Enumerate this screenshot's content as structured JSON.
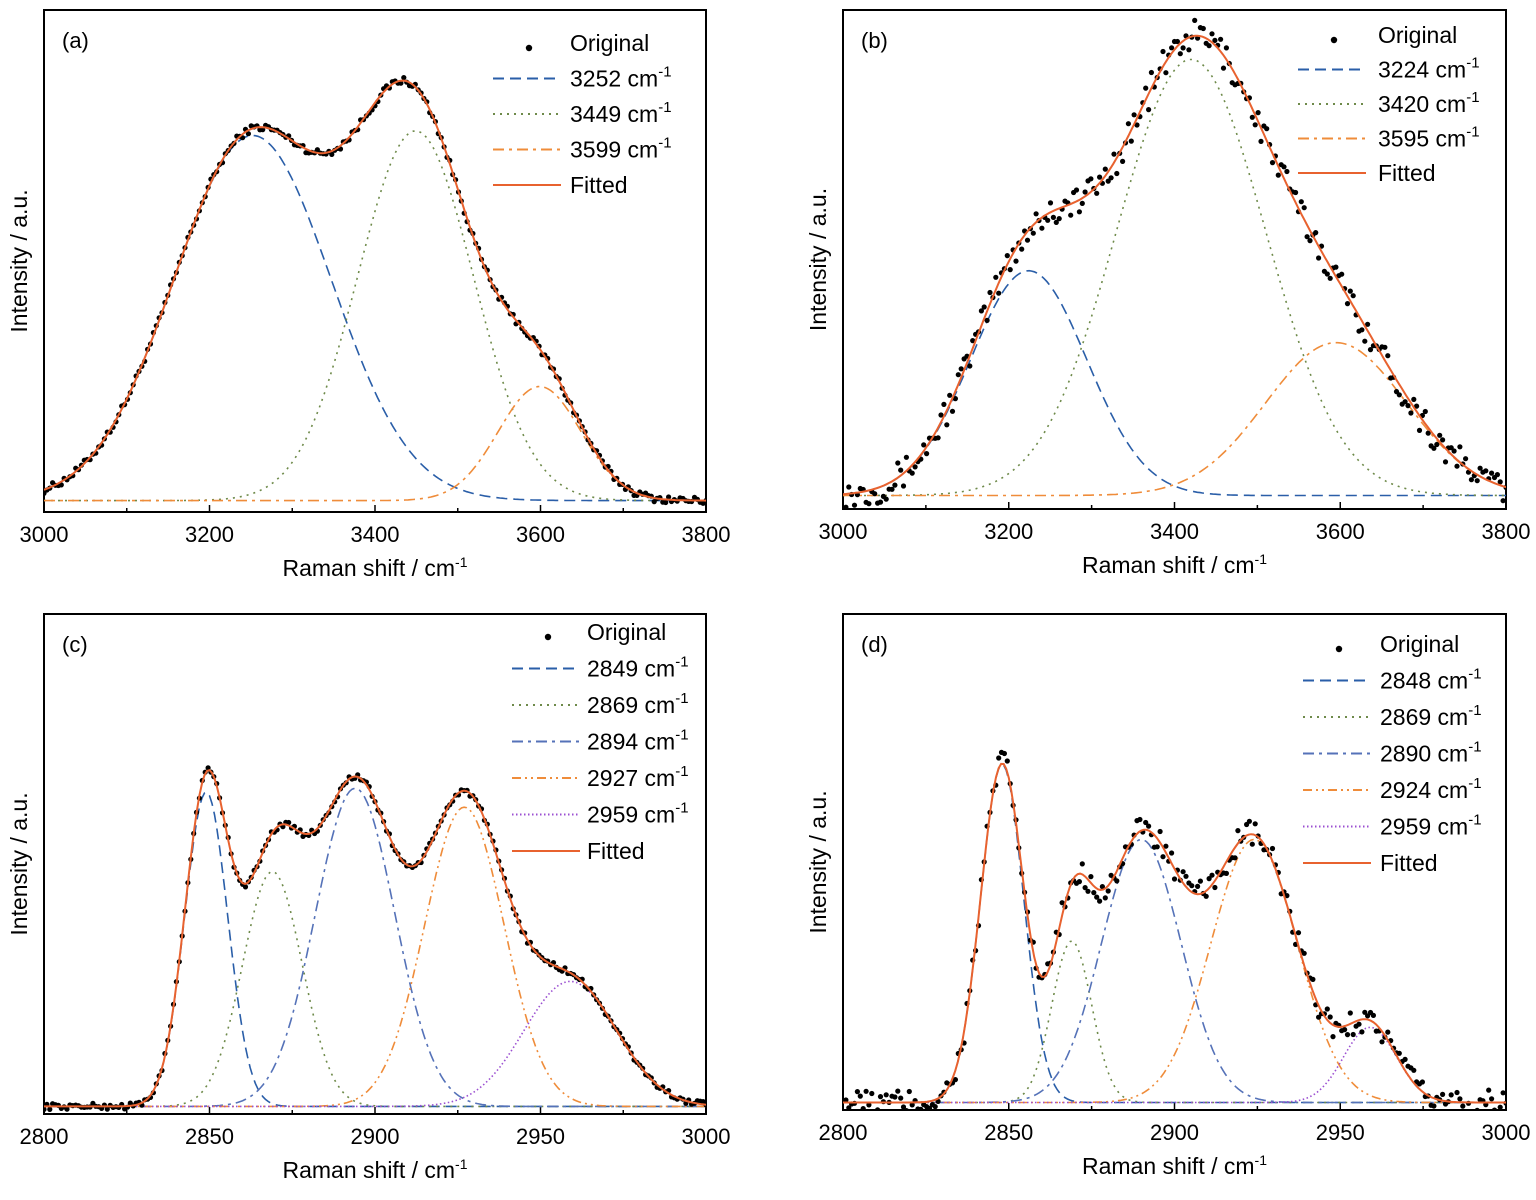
{
  "colors": {
    "original": "#000000",
    "fitted": "#e8622f",
    "blue": "#2a5ea8",
    "green": "#6e8a4a",
    "orange": "#ef8c3a",
    "slate": "#5572b8",
    "purple": "#9b4fd1"
  },
  "chart_data": [
    {
      "type": "line",
      "panel_label": "(a)",
      "xlabel": "Raman shift / cm",
      "xlabel_sup": "-1",
      "ylabel": "Intensity / a.u.",
      "xlim": [
        3000,
        3800
      ],
      "ylim": [
        -0.02,
        1.08
      ],
      "xticks": [
        "3000",
        "3200",
        "3400",
        "3600",
        "3800"
      ],
      "baseline": 0.005,
      "peaks": [
        {
          "center": 3252,
          "amp": 0.8,
          "sigma": 95,
          "style": "dash",
          "color": "blue"
        },
        {
          "center": 3449,
          "amp": 0.81,
          "sigma": 70,
          "style": "dot",
          "color": "green"
        },
        {
          "center": 3599,
          "amp": 0.25,
          "sigma": 50,
          "style": "dashdot",
          "color": "orange"
        }
      ],
      "legend": [
        {
          "label": "Original",
          "sup": "",
          "kind": "marker"
        },
        {
          "label": "3252 cm",
          "sup": "-1",
          "kind": "dash",
          "color": "blue"
        },
        {
          "label": "3449 cm",
          "sup": "-1",
          "kind": "dot",
          "color": "green"
        },
        {
          "label": "3599 cm",
          "sup": "-1",
          "kind": "dashdot",
          "color": "orange"
        },
        {
          "label": "Fitted",
          "sup": "",
          "kind": "line",
          "color": "fitted"
        }
      ]
    },
    {
      "type": "line",
      "panel_label": "(b)",
      "xlabel": "Raman shift / cm",
      "xlabel_sup": "-1",
      "ylabel": "Intensity / a.u.",
      "xlim": [
        3000,
        3800
      ],
      "ylim": [
        -0.03,
        1.08
      ],
      "xticks": [
        "3000",
        "3200",
        "3400",
        "3600",
        "3800"
      ],
      "baseline": 0.0,
      "peaks": [
        {
          "center": 3224,
          "amp": 0.5,
          "sigma": 70,
          "style": "dash",
          "color": "blue"
        },
        {
          "center": 3420,
          "amp": 0.97,
          "sigma": 90,
          "style": "dot",
          "color": "green"
        },
        {
          "center": 3595,
          "amp": 0.34,
          "sigma": 85,
          "style": "dashdot",
          "color": "orange"
        }
      ],
      "legend": [
        {
          "label": "Original",
          "sup": "",
          "kind": "marker"
        },
        {
          "label": "3224 cm",
          "sup": "-1",
          "kind": "dash",
          "color": "blue"
        },
        {
          "label": "3420 cm",
          "sup": "-1",
          "kind": "dot",
          "color": "green"
        },
        {
          "label": "3595 cm",
          "sup": "-1",
          "kind": "dashdot",
          "color": "orange"
        },
        {
          "label": "Fitted",
          "sup": "",
          "kind": "line",
          "color": "fitted"
        }
      ]
    },
    {
      "type": "line",
      "panel_label": "(c)",
      "xlabel": "Raman shift  / cm",
      "xlabel_sup": "-1",
      "ylabel": "Intensity / a.u.",
      "xlim": [
        2800,
        3000
      ],
      "ylim": [
        -0.02,
        1.3
      ],
      "xticks": [
        "2800",
        "2850",
        "2900",
        "2950",
        "3000"
      ],
      "baseline": 0.0,
      "peaks": [
        {
          "center": 2849,
          "amp": 0.83,
          "sigma": 6.5,
          "style": "dash",
          "color": "blue"
        },
        {
          "center": 2869,
          "amp": 0.62,
          "sigma": 9,
          "style": "dot",
          "color": "green"
        },
        {
          "center": 2894,
          "amp": 0.84,
          "sigma": 12,
          "style": "dashdot",
          "color": "slate"
        },
        {
          "center": 2927,
          "amp": 0.79,
          "sigma": 12,
          "style": "dashdotdot",
          "color": "orange"
        },
        {
          "center": 2959,
          "amp": 0.33,
          "sigma": 14,
          "style": "finedot",
          "color": "purple"
        }
      ],
      "legend": [
        {
          "label": "Original",
          "sup": "",
          "kind": "marker"
        },
        {
          "label": "2849 cm",
          "sup": "-1",
          "kind": "dash",
          "color": "blue"
        },
        {
          "label": "2869 cm",
          "sup": "-1",
          "kind": "dot",
          "color": "green"
        },
        {
          "label": "2894 cm",
          "sup": "-1",
          "kind": "dashdot",
          "color": "slate"
        },
        {
          "label": "2927 cm",
          "sup": "-1",
          "kind": "dashdotdot",
          "color": "orange"
        },
        {
          "label": "2959 cm",
          "sup": "-1",
          "kind": "finedot",
          "color": "purple"
        },
        {
          "label": "Fitted",
          "sup": "",
          "kind": "line",
          "color": "fitted"
        }
      ]
    },
    {
      "type": "line",
      "panel_label": "(d)",
      "xlabel": "Raman shift / cm",
      "xlabel_sup": "-1",
      "ylabel": "Intensity / a.u.",
      "xlim": [
        2800,
        3000
      ],
      "ylim": [
        -0.02,
        1.3
      ],
      "xticks": [
        "2800",
        "2850",
        "2900",
        "2950",
        "3000"
      ],
      "baseline": 0.0,
      "peaks": [
        {
          "center": 2848,
          "amp": 0.9,
          "sigma": 6.5,
          "style": "dash",
          "color": "blue"
        },
        {
          "center": 2869,
          "amp": 0.43,
          "sigma": 6,
          "style": "dot",
          "color": "green"
        },
        {
          "center": 2890,
          "amp": 0.7,
          "sigma": 12,
          "style": "dashdot",
          "color": "slate"
        },
        {
          "center": 2924,
          "amp": 0.7,
          "sigma": 13,
          "style": "dashdotdot",
          "color": "orange"
        },
        {
          "center": 2959,
          "amp": 0.2,
          "sigma": 8,
          "style": "finedot",
          "color": "purple"
        }
      ],
      "legend": [
        {
          "label": "Original",
          "sup": "",
          "kind": "marker"
        },
        {
          "label": "2848 cm",
          "sup": "-1",
          "kind": "dash",
          "color": "blue"
        },
        {
          "label": "2869 cm",
          "sup": "-1",
          "kind": "dot",
          "color": "green"
        },
        {
          "label": "2890 cm",
          "sup": "-1",
          "kind": "dashdot",
          "color": "slate"
        },
        {
          "label": "2924 cm",
          "sup": "-1",
          "kind": "dashdotdot",
          "color": "orange"
        },
        {
          "label": "2959 cm",
          "sup": "-1",
          "kind": "finedot",
          "color": "purple"
        },
        {
          "label": "Fitted",
          "sup": "",
          "kind": "line",
          "color": "fitted"
        }
      ]
    }
  ]
}
